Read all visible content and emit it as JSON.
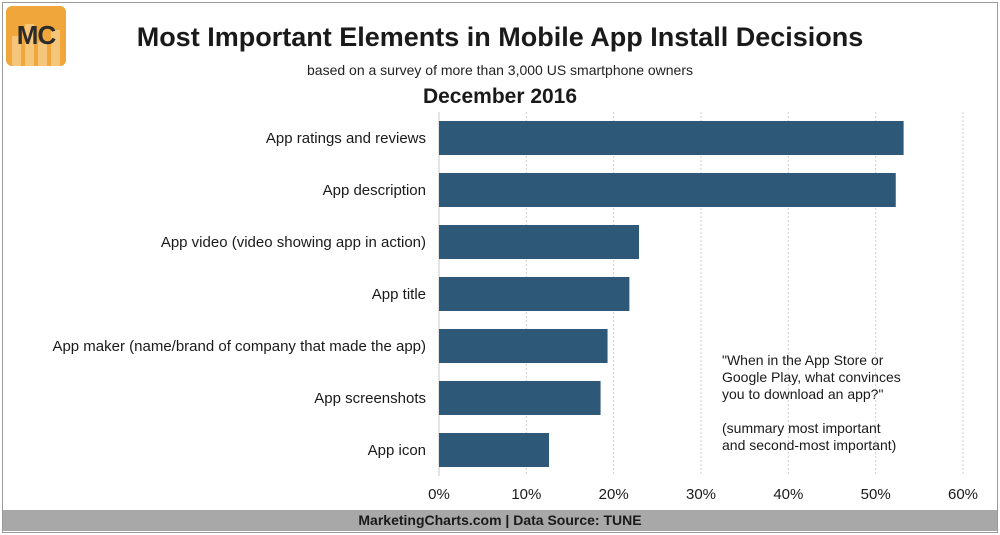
{
  "logo": {
    "text": "MC"
  },
  "header": {
    "title": "Most Important Elements in Mobile App Install Decisions",
    "subtitle": "based on a survey of more than 3,000 US smartphone owners",
    "period": "December 2016"
  },
  "note": {
    "question": "\"When in the App Store or\nGoogle Play, what convinces\nyou to download an app?\"",
    "detail": "(summary most important\nand second-most important)"
  },
  "footer": {
    "text": "MarketingCharts.com | Data Source: TUNE"
  },
  "colors": {
    "bar": "#2e5878",
    "grid": "#cfcfcf"
  },
  "chart_data": {
    "type": "bar",
    "orientation": "horizontal",
    "categories": [
      "App ratings and reviews",
      "App description",
      "App video (video showing app in action)",
      "App title",
      "App maker (name/brand of company that made the app)",
      "App screenshots",
      "App icon"
    ],
    "values": [
      53.2,
      52.3,
      22.9,
      21.8,
      19.3,
      18.5,
      12.6
    ],
    "xlim": [
      0,
      60
    ],
    "xticks": [
      "0%",
      "10%",
      "20%",
      "30%",
      "40%",
      "50%",
      "60%"
    ],
    "grid": true
  }
}
